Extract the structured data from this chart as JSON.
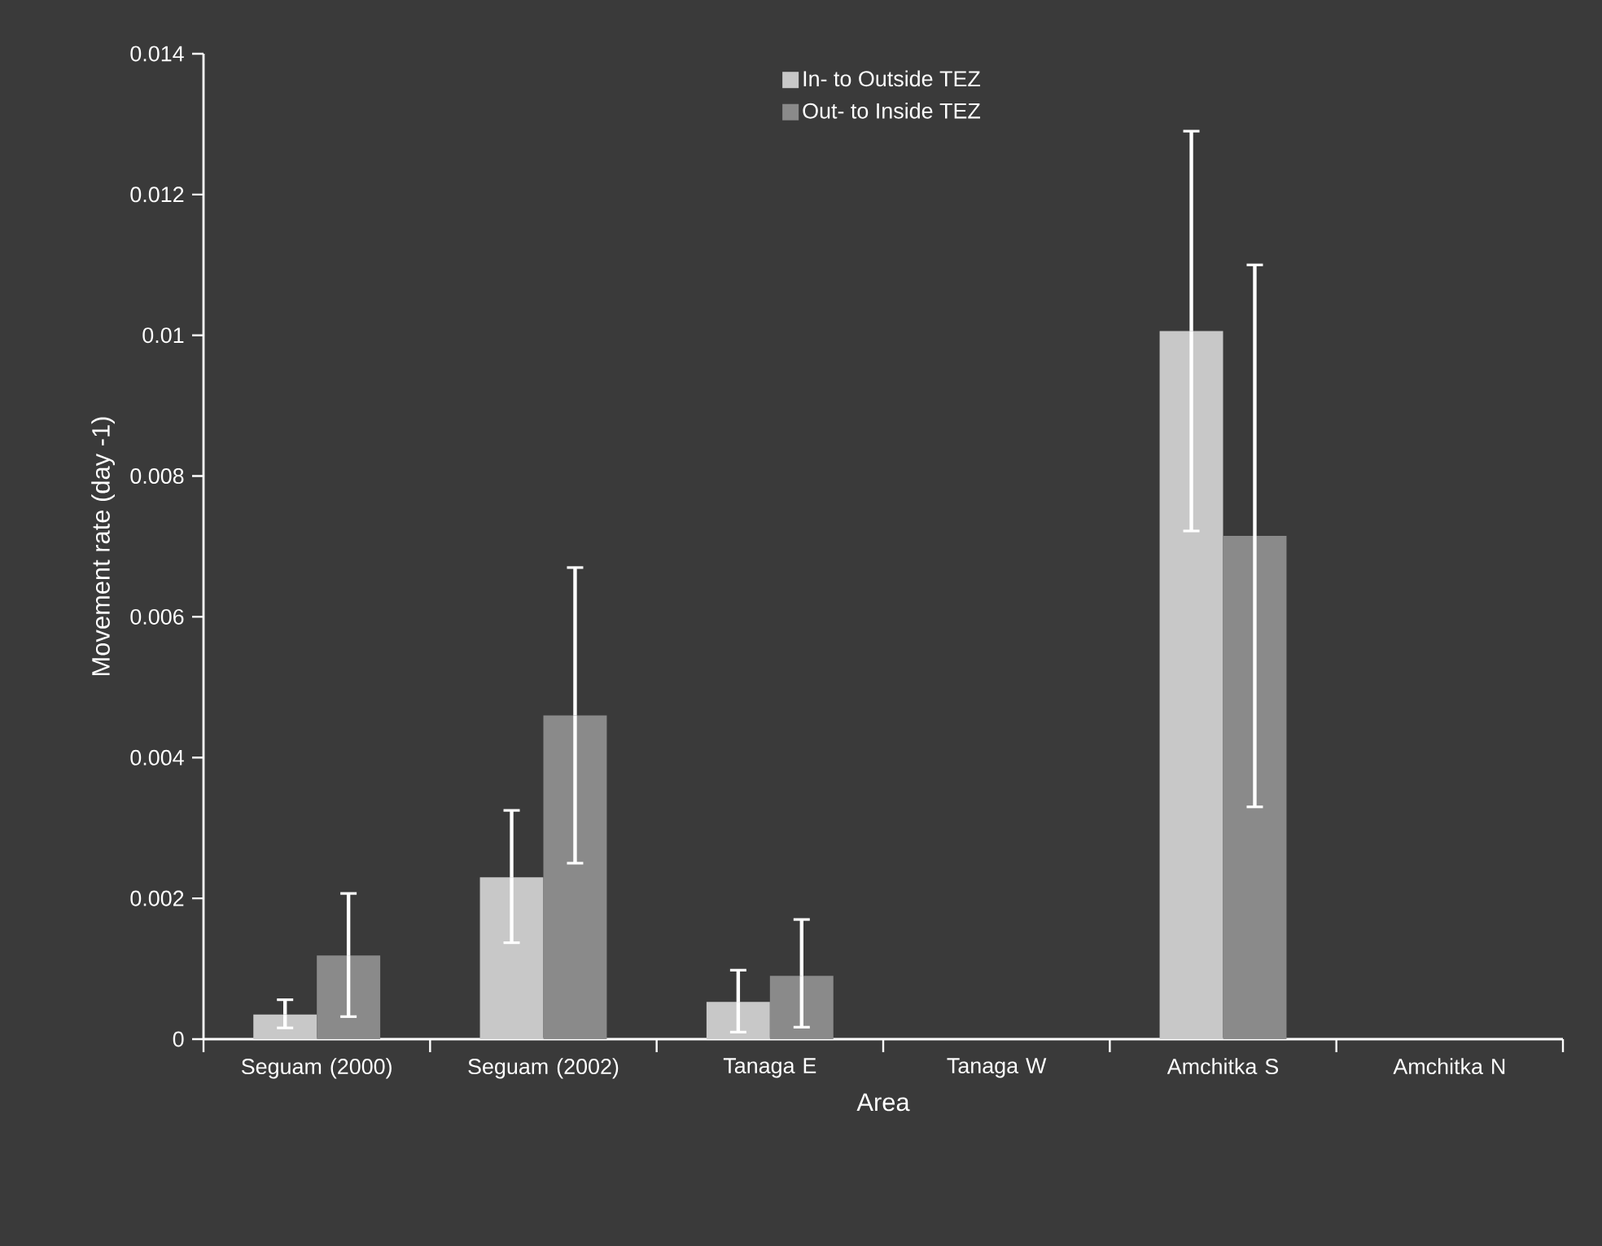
{
  "chart_data": {
    "type": "bar",
    "xlabel": "Area",
    "ylabel": "Movement rate (day -1)",
    "categories": [
      "Seguam (2000)",
      "Seguam (2002)",
      "Tanaga E",
      "Tanaga W",
      "Amchitka S",
      "Amchitka N"
    ],
    "series": [
      {
        "name": "In- to Outside TEZ",
        "color": "#c8c8c8",
        "values": [
          0.00035,
          0.0023,
          0.00053,
          null,
          0.01006,
          null
        ],
        "errors": [
          [
            0.00016,
            0.00056
          ],
          [
            0.00137,
            0.00325
          ],
          [
            0.0001,
            0.00098
          ],
          null,
          [
            0.00722,
            0.0129
          ],
          null
        ]
      },
      {
        "name": "Out- to Inside TEZ",
        "color": "#8a8a8a",
        "values": [
          0.00119,
          0.0046,
          0.0009,
          null,
          0.00715,
          null
        ],
        "errors": [
          [
            0.00032,
            0.00207
          ],
          [
            0.0025,
            0.0067
          ],
          [
            0.00017,
            0.0017
          ],
          null,
          [
            0.0033,
            0.011
          ],
          null
        ]
      }
    ],
    "ylim": [
      0,
      0.014
    ],
    "yticks": [
      0,
      0.002,
      0.004,
      0.006,
      0.008,
      0.01,
      0.012,
      0.014
    ],
    "grid": false,
    "legend": "top"
  }
}
